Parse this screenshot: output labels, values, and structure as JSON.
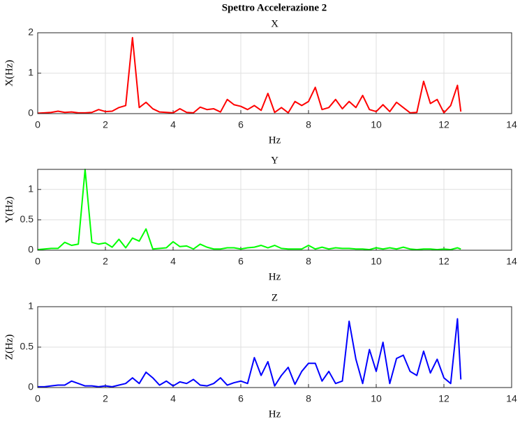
{
  "title": "Spettro Accelerazione 2",
  "chart_data": [
    {
      "type": "line",
      "title": "X",
      "xlabel": "Hz",
      "ylabel": "X(Hz)",
      "color": "#ff0000",
      "grid": true,
      "xlim": [
        0,
        14
      ],
      "xticks": [
        0,
        2,
        4,
        6,
        8,
        10,
        12,
        14
      ],
      "ylim": [
        0,
        2
      ],
      "yticks": [
        0,
        1,
        2
      ],
      "x": [
        0,
        0.2,
        0.4,
        0.6,
        0.8,
        1,
        1.2,
        1.4,
        1.6,
        1.8,
        2,
        2.2,
        2.4,
        2.6,
        2.8,
        3,
        3.2,
        3.4,
        3.6,
        3.8,
        4,
        4.2,
        4.4,
        4.6,
        4.8,
        5,
        5.2,
        5.4,
        5.6,
        5.8,
        6,
        6.2,
        6.4,
        6.6,
        6.8,
        7,
        7.2,
        7.4,
        7.6,
        7.8,
        8,
        8.2,
        8.4,
        8.6,
        8.8,
        9,
        9.2,
        9.4,
        9.6,
        9.8,
        10,
        10.2,
        10.4,
        10.6,
        10.8,
        11,
        11.2,
        11.4,
        11.6,
        11.8,
        12,
        12.2,
        12.4,
        12.5
      ],
      "values": [
        0.01,
        0.02,
        0.03,
        0.06,
        0.03,
        0.04,
        0.02,
        0.02,
        0.03,
        0.1,
        0.05,
        0.06,
        0.15,
        0.2,
        1.88,
        0.15,
        0.28,
        0.12,
        0.04,
        0.03,
        0.02,
        0.12,
        0.03,
        0.02,
        0.16,
        0.1,
        0.12,
        0.04,
        0.35,
        0.22,
        0.18,
        0.1,
        0.2,
        0.08,
        0.5,
        0.03,
        0.15,
        0.02,
        0.3,
        0.2,
        0.3,
        0.65,
        0.1,
        0.15,
        0.35,
        0.12,
        0.3,
        0.15,
        0.45,
        0.1,
        0.05,
        0.22,
        0.05,
        0.28,
        0.15,
        0.02,
        0.03,
        0.8,
        0.25,
        0.35,
        0.02,
        0.2,
        0.7,
        0.05
      ]
    },
    {
      "type": "line",
      "title": "Y",
      "xlabel": "Hz",
      "ylabel": "Y(Hz)",
      "color": "#00ff00",
      "grid": true,
      "xlim": [
        0,
        14
      ],
      "xticks": [
        0,
        2,
        4,
        6,
        8,
        10,
        12,
        14
      ],
      "ylim": [
        0,
        1.33
      ],
      "yticks": [
        0,
        0.5,
        1
      ],
      "x": [
        0,
        0.2,
        0.4,
        0.6,
        0.8,
        1,
        1.2,
        1.4,
        1.6,
        1.8,
        2,
        2.2,
        2.4,
        2.6,
        2.8,
        3,
        3.2,
        3.4,
        3.6,
        3.8,
        4,
        4.2,
        4.4,
        4.6,
        4.8,
        5,
        5.2,
        5.4,
        5.6,
        5.8,
        6,
        6.2,
        6.4,
        6.6,
        6.8,
        7,
        7.2,
        7.4,
        7.6,
        7.8,
        8,
        8.2,
        8.4,
        8.6,
        8.8,
        9,
        9.2,
        9.4,
        9.6,
        9.8,
        10,
        10.2,
        10.4,
        10.6,
        10.8,
        11,
        11.2,
        11.4,
        11.6,
        11.8,
        12,
        12.2,
        12.4,
        12.5
      ],
      "values": [
        0.01,
        0.02,
        0.03,
        0.03,
        0.13,
        0.08,
        0.1,
        1.33,
        0.13,
        0.1,
        0.12,
        0.05,
        0.18,
        0.04,
        0.2,
        0.15,
        0.35,
        0.02,
        0.03,
        0.04,
        0.14,
        0.06,
        0.07,
        0.02,
        0.1,
        0.05,
        0.02,
        0.02,
        0.04,
        0.04,
        0.02,
        0.04,
        0.05,
        0.08,
        0.04,
        0.08,
        0.03,
        0.02,
        0.02,
        0.02,
        0.08,
        0.02,
        0.05,
        0.02,
        0.04,
        0.03,
        0.03,
        0.02,
        0.02,
        0.01,
        0.04,
        0.02,
        0.04,
        0.02,
        0.05,
        0.02,
        0.01,
        0.02,
        0.02,
        0.01,
        0.02,
        0.01,
        0.04,
        0.02
      ]
    },
    {
      "type": "line",
      "title": "Z",
      "xlabel": "Hz",
      "ylabel": "Z(Hz)",
      "color": "#0000ff",
      "grid": true,
      "xlim": [
        0,
        14
      ],
      "xticks": [
        0,
        2,
        4,
        6,
        8,
        10,
        12,
        14
      ],
      "ylim": [
        0,
        1
      ],
      "yticks": [
        0,
        0.5,
        1
      ],
      "x": [
        0,
        0.2,
        0.4,
        0.6,
        0.8,
        1,
        1.2,
        1.4,
        1.6,
        1.8,
        2,
        2.2,
        2.4,
        2.6,
        2.8,
        3,
        3.2,
        3.4,
        3.6,
        3.8,
        4,
        4.2,
        4.4,
        4.6,
        4.8,
        5,
        5.2,
        5.4,
        5.6,
        5.8,
        6,
        6.2,
        6.4,
        6.6,
        6.8,
        7,
        7.2,
        7.4,
        7.6,
        7.8,
        8,
        8.2,
        8.4,
        8.6,
        8.8,
        9,
        9.2,
        9.4,
        9.6,
        9.8,
        10,
        10.2,
        10.4,
        10.6,
        10.8,
        11,
        11.2,
        11.4,
        11.6,
        11.8,
        12,
        12.2,
        12.4,
        12.5
      ],
      "values": [
        0.01,
        0.01,
        0.02,
        0.03,
        0.03,
        0.08,
        0.05,
        0.02,
        0.02,
        0.01,
        0.02,
        0.01,
        0.03,
        0.05,
        0.12,
        0.05,
        0.19,
        0.12,
        0.03,
        0.08,
        0.02,
        0.07,
        0.05,
        0.1,
        0.03,
        0.02,
        0.05,
        0.12,
        0.03,
        0.06,
        0.08,
        0.05,
        0.37,
        0.15,
        0.32,
        0.02,
        0.15,
        0.25,
        0.04,
        0.2,
        0.3,
        0.3,
        0.08,
        0.2,
        0.05,
        0.08,
        0.82,
        0.35,
        0.05,
        0.47,
        0.2,
        0.56,
        0.05,
        0.36,
        0.4,
        0.2,
        0.15,
        0.45,
        0.18,
        0.35,
        0.12,
        0.05,
        0.85,
        0.1
      ]
    }
  ]
}
